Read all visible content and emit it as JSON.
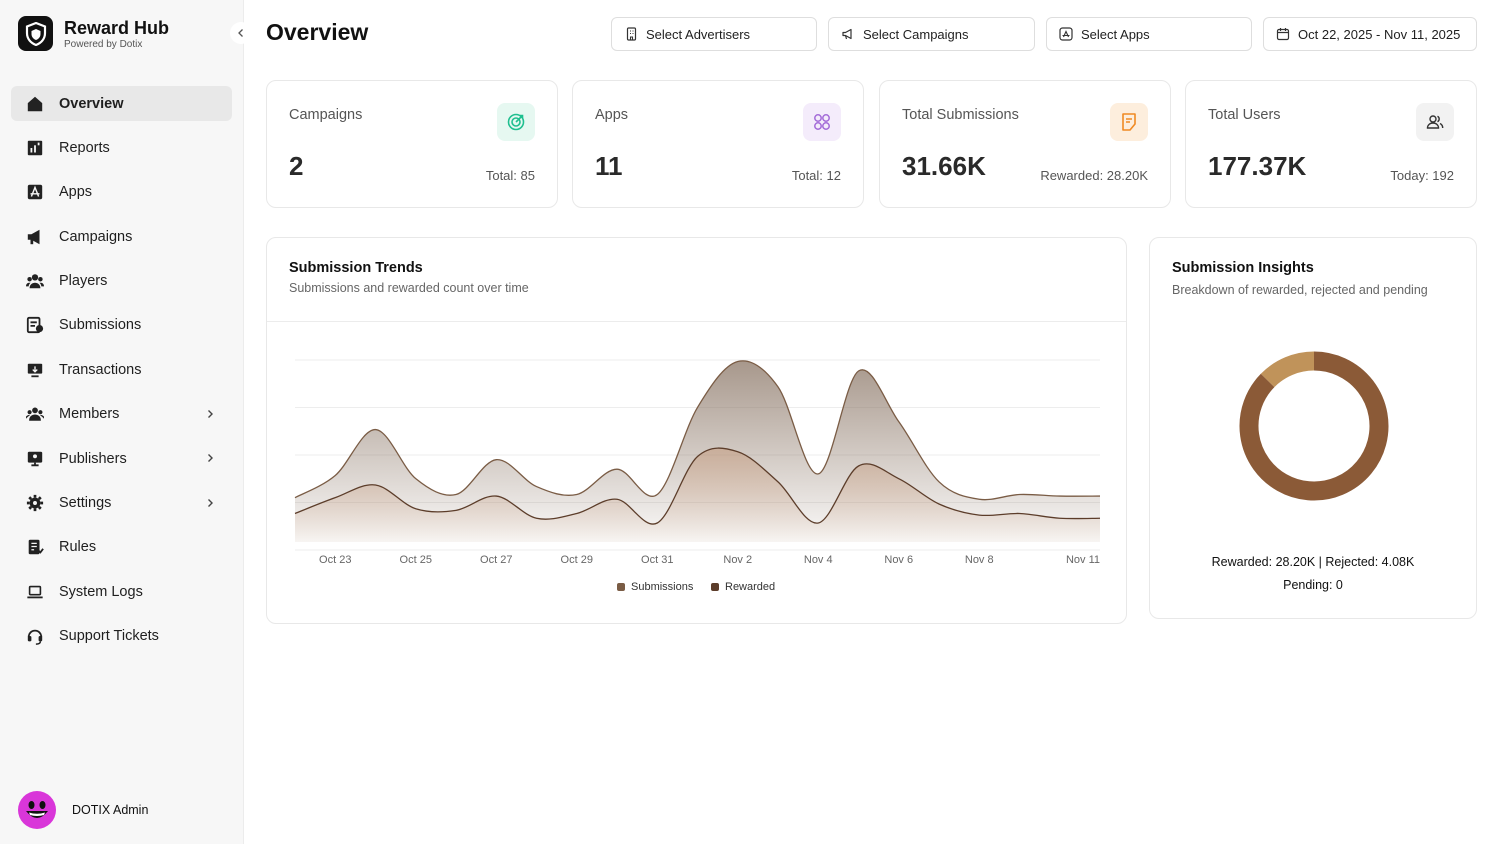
{
  "brand": {
    "name": "Reward Hub",
    "subtitle": "Powered by Dotix"
  },
  "sidebar": {
    "items": [
      {
        "label": "Overview",
        "icon": "home-icon",
        "active": true,
        "has_children": false
      },
      {
        "label": "Reports",
        "icon": "reports-icon",
        "active": false,
        "has_children": false
      },
      {
        "label": "Apps",
        "icon": "apps-icon",
        "active": false,
        "has_children": false
      },
      {
        "label": "Campaigns",
        "icon": "megaphone-icon",
        "active": false,
        "has_children": false
      },
      {
        "label": "Players",
        "icon": "players-icon",
        "active": false,
        "has_children": false
      },
      {
        "label": "Submissions",
        "icon": "submissions-icon",
        "active": false,
        "has_children": false
      },
      {
        "label": "Transactions",
        "icon": "transactions-icon",
        "active": false,
        "has_children": false
      },
      {
        "label": "Members",
        "icon": "members-icon",
        "active": false,
        "has_children": true
      },
      {
        "label": "Publishers",
        "icon": "publishers-icon",
        "active": false,
        "has_children": true
      },
      {
        "label": "Settings",
        "icon": "gear-icon",
        "active": false,
        "has_children": true
      },
      {
        "label": "Rules",
        "icon": "rules-icon",
        "active": false,
        "has_children": false
      },
      {
        "label": "System Logs",
        "icon": "laptop-icon",
        "active": false,
        "has_children": false
      },
      {
        "label": "Support Tickets",
        "icon": "headset-icon",
        "active": false,
        "has_children": false
      }
    ]
  },
  "user": {
    "name": "DOTIX Admin"
  },
  "header": {
    "title": "Overview",
    "filters": {
      "advertisers": "Select Advertisers",
      "campaigns": "Select Campaigns",
      "apps": "Select Apps",
      "date_range": "Oct 22, 2025 - Nov 11, 2025"
    }
  },
  "stats": [
    {
      "title": "Campaigns",
      "value": "2",
      "sub": "Total: 85",
      "icon": "target-icon",
      "accent": "#1fbf8f"
    },
    {
      "title": "Apps",
      "value": "11",
      "sub": "Total: 12",
      "icon": "grid-icon",
      "accent": "#a36bd8"
    },
    {
      "title": "Total Submissions",
      "value": "31.66K",
      "sub": "Rewarded: 28.20K",
      "icon": "note-icon",
      "accent": "#f08a24"
    },
    {
      "title": "Total Users",
      "value": "177.37K",
      "sub": "Today: 192",
      "icon": "users-icon",
      "accent": "#333333"
    }
  ],
  "trends": {
    "title": "Submission Trends",
    "subtitle": "Submissions and rewarded count over time"
  },
  "insights": {
    "title": "Submission Insights",
    "subtitle": "Breakdown of rewarded, rejected and pending",
    "line1": "Rewarded: 28.20K | Rejected: 4.08K",
    "line2": "Pending: 0"
  },
  "chart_data": [
    {
      "type": "area",
      "x": [
        "Oct 22",
        "Oct 23",
        "Oct 24",
        "Oct 25",
        "Oct 26",
        "Oct 27",
        "Oct 28",
        "Oct 29",
        "Oct 30",
        "Oct 31",
        "Nov 1",
        "Nov 2",
        "Nov 3",
        "Nov 4",
        "Nov 5",
        "Nov 6",
        "Nov 7",
        "Nov 8",
        "Nov 9",
        "Nov 10",
        "Nov 11"
      ],
      "xticks": [
        "Oct 23",
        "Oct 25",
        "Oct 27",
        "Oct 29",
        "Oct 31",
        "Nov 2",
        "Nov 4",
        "Nov 6",
        "Nov 8",
        "Nov 11"
      ],
      "series": [
        {
          "name": "Submissions",
          "color": "#7a5c45",
          "values": [
            0.28,
            0.42,
            0.71,
            0.4,
            0.3,
            0.52,
            0.35,
            0.3,
            0.46,
            0.3,
            0.85,
            1.14,
            0.98,
            0.43,
            1.08,
            0.76,
            0.38,
            0.27,
            0.3,
            0.29,
            0.29
          ]
        },
        {
          "name": "Rewarded",
          "color": "#5c3d2a",
          "values": [
            0.18,
            0.28,
            0.36,
            0.21,
            0.2,
            0.29,
            0.15,
            0.18,
            0.27,
            0.12,
            0.54,
            0.57,
            0.38,
            0.12,
            0.48,
            0.4,
            0.24,
            0.17,
            0.18,
            0.15,
            0.15
          ]
        }
      ],
      "legend": "bottom",
      "grid": true
    },
    {
      "type": "pie",
      "donut": true,
      "slices": [
        {
          "label": "Rewarded",
          "value": 28200,
          "color": "#8b5a37"
        },
        {
          "label": "Rejected",
          "value": 4080,
          "color": "#c0935a"
        },
        {
          "label": "Pending",
          "value": 0,
          "color": "#d9c2a3"
        }
      ]
    }
  ]
}
